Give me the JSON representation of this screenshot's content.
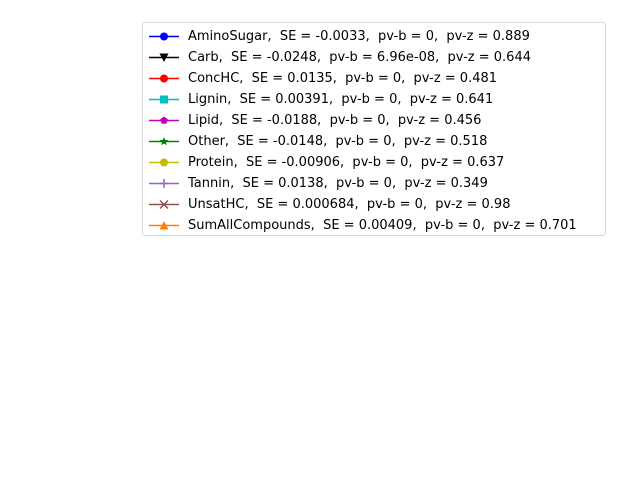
{
  "chart_data": {
    "type": "line",
    "title": "",
    "xlabel": "",
    "ylabel": "",
    "grid": false,
    "axes_visible": false,
    "legend_placement": "top-right",
    "series": [
      {
        "name": "AminoSugar,  SE = -0.0033,  pv-b = 0,  pv-z = 0.889",
        "color": "#0000ff",
        "marker": "circle",
        "values": []
      },
      {
        "name": "Carb,  SE = -0.0248,  pv-b = 6.96e-08,  pv-z = 0.644",
        "color": "#000000",
        "marker": "triangle-down",
        "values": []
      },
      {
        "name": "ConcHC,  SE = 0.0135,  pv-b = 0,  pv-z = 0.481",
        "color": "#ff0000",
        "marker": "circle",
        "values": []
      },
      {
        "name": "Lignin,  SE = 0.00391,  pv-b = 0,  pv-z = 0.641",
        "color": "#00bfbf",
        "marker": "square",
        "values": []
      },
      {
        "name": "Lipid,  SE = -0.0188,  pv-b = 0,  pv-z = 0.456",
        "color": "#bf00bf",
        "marker": "pentagon",
        "values": []
      },
      {
        "name": "Other,  SE = -0.0148,  pv-b = 0,  pv-z = 0.518",
        "color": "#008000",
        "marker": "star",
        "values": []
      },
      {
        "name": "Protein,  SE = -0.00906,  pv-b = 0,  pv-z = 0.637",
        "color": "#bfbf00",
        "marker": "octagon",
        "values": []
      },
      {
        "name": "Tannin,  SE = 0.0138,  pv-b = 0,  pv-z = 0.349",
        "color": "#9467bd",
        "marker": "plus",
        "values": []
      },
      {
        "name": "UnsatHC,  SE = 0.000684,  pv-b = 0,  pv-z = 0.98",
        "color": "#8c564b",
        "marker": "x",
        "values": []
      },
      {
        "name": "SumAllCompounds,  SE = 0.00409,  pv-b = 0,  pv-z = 0.701",
        "color": "#ff7f0e",
        "marker": "triangle-up",
        "values": []
      }
    ]
  }
}
